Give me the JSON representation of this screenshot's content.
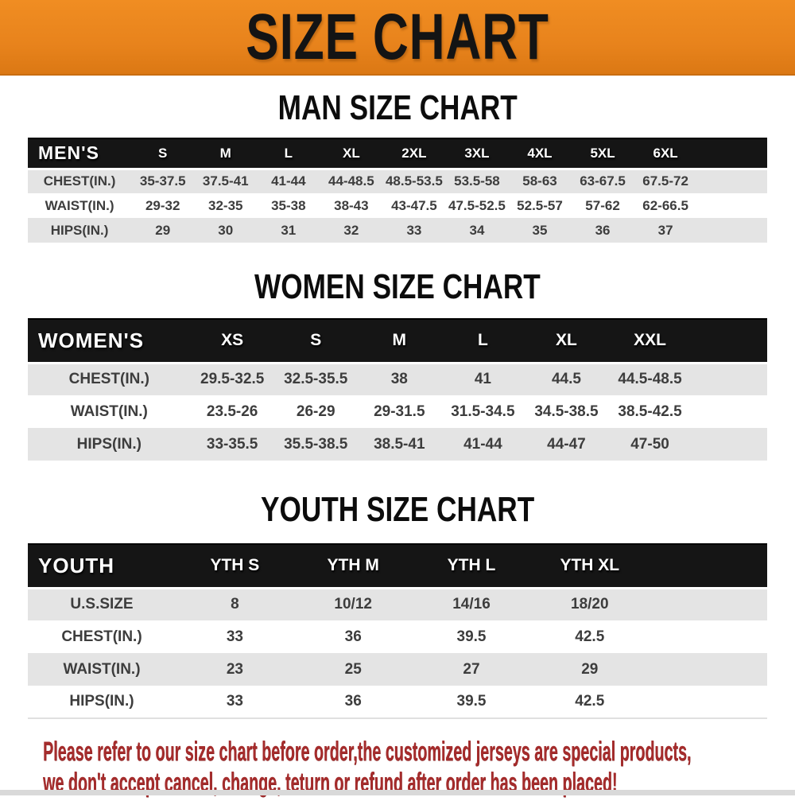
{
  "banner": {
    "title": "SIZE CHART",
    "bg_color": "#e8831c",
    "text_color": "#141414"
  },
  "sections": [
    {
      "id": "men",
      "heading": "MAN SIZE CHART",
      "table": {
        "label": "MEN'S",
        "columns": [
          "S",
          "M",
          "L",
          "XL",
          "2XL",
          "3XL",
          "4XL",
          "5XL",
          "6XL"
        ],
        "rows": [
          {
            "label": "CHEST(IN.)",
            "values": [
              "35-37.5",
              "37.5-41",
              "41-44",
              "44-48.5",
              "48.5-53.5",
              "53.5-58",
              "58-63",
              "63-67.5",
              "67.5-72"
            ]
          },
          {
            "label": "WAIST(IN.)",
            "values": [
              "29-32",
              "32-35",
              "35-38",
              "38-43",
              "43-47.5",
              "47.5-52.5",
              "52.5-57",
              "57-62",
              "62-66.5"
            ]
          },
          {
            "label": "HIPS(IN.)",
            "values": [
              "29",
              "30",
              "31",
              "32",
              "33",
              "34",
              "35",
              "36",
              "37"
            ]
          }
        ]
      }
    },
    {
      "id": "women",
      "heading": "WOMEN SIZE CHART",
      "table": {
        "label": "WOMEN'S",
        "columns": [
          "XS",
          "S",
          "M",
          "L",
          "XL",
          "XXL"
        ],
        "rows": [
          {
            "label": "CHEST(IN.)",
            "values": [
              "29.5-32.5",
              "32.5-35.5",
              "38",
              "41",
              "44.5",
              "44.5-48.5"
            ]
          },
          {
            "label": "WAIST(IN.)",
            "values": [
              "23.5-26",
              "26-29",
              "29-31.5",
              "31.5-34.5",
              "34.5-38.5",
              "38.5-42.5"
            ]
          },
          {
            "label": "HIPS(IN.)",
            "values": [
              "33-35.5",
              "35.5-38.5",
              "38.5-41",
              "41-44",
              "44-47",
              "47-50"
            ]
          }
        ]
      }
    },
    {
      "id": "youth",
      "heading": "YOUTH SIZE CHART",
      "table": {
        "label": "YOUTH",
        "columns": [
          "YTH S",
          "YTH M",
          "YTH L",
          "YTH XL"
        ],
        "rows": [
          {
            "label": "U.S.SIZE",
            "values": [
              "8",
              "10/12",
              "14/16",
              "18/20"
            ]
          },
          {
            "label": "CHEST(IN.)",
            "values": [
              "33",
              "36",
              "39.5",
              "42.5"
            ]
          },
          {
            "label": "WAIST(IN.)",
            "values": [
              "23",
              "25",
              "27",
              "29"
            ]
          },
          {
            "label": "HIPS(IN.)",
            "values": [
              "33",
              "36",
              "39.5",
              "42.5"
            ]
          }
        ]
      }
    }
  ],
  "footer": {
    "line1": "Please refer to our size chart before order,the customized jerseys are special products,",
    "line2": "we don't accept cancel, change, teturn or refund after order has been placed!",
    "color": "#a52c2c"
  }
}
